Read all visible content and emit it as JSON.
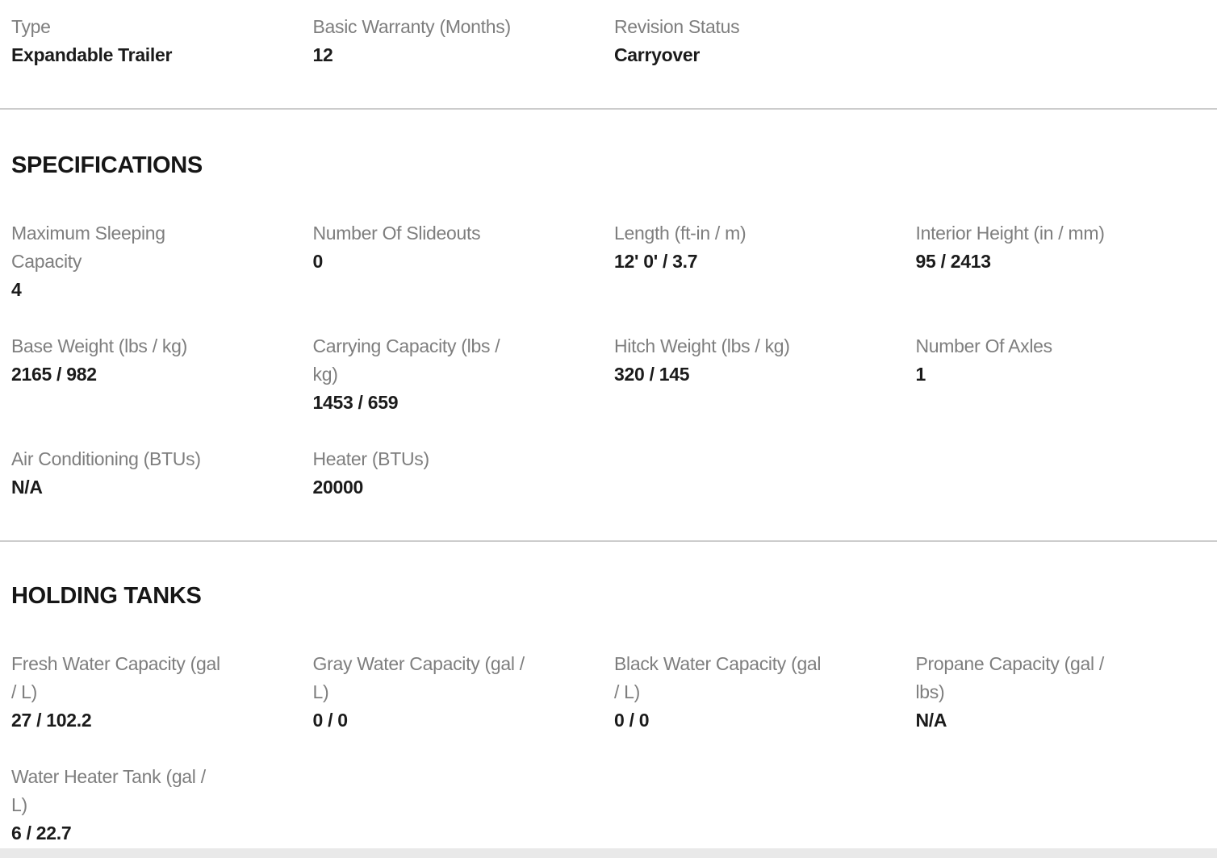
{
  "colors": {
    "label": "#7e7e7e",
    "value": "#1b1b1b",
    "divider": "#cccccc",
    "bottom_bar": "#e9e9e9",
    "background": "#ffffff"
  },
  "overview": {
    "fields": [
      {
        "label": "Type",
        "value": "Expandable Trailer"
      },
      {
        "label": "Basic Warranty (Months)",
        "value": "12"
      },
      {
        "label": "Revision Status",
        "value": "Carryover"
      }
    ]
  },
  "specifications": {
    "title": "SPECIFICATIONS",
    "fields": [
      {
        "label": "Maximum Sleeping\nCapacity",
        "value": "4"
      },
      {
        "label": "Number Of Slideouts",
        "value": "0"
      },
      {
        "label": "Length (ft-in / m)",
        "value": "12' 0' / 3.7"
      },
      {
        "label": "Interior Height (in / mm)",
        "value": "95 / 2413"
      },
      {
        "label": "Base Weight (lbs / kg)",
        "value": "2165 / 982"
      },
      {
        "label": "Carrying Capacity (lbs /\nkg)",
        "value": "1453 / 659"
      },
      {
        "label": "Hitch Weight (lbs / kg)",
        "value": "320 / 145"
      },
      {
        "label": "Number Of Axles",
        "value": "1"
      },
      {
        "label": "Air Conditioning (BTUs)",
        "value": "N/A"
      },
      {
        "label": "Heater (BTUs)",
        "value": "20000"
      }
    ]
  },
  "holding_tanks": {
    "title": "HOLDING TANKS",
    "fields": [
      {
        "label": "Fresh Water Capacity (gal\n/ L)",
        "value": "27 / 102.2"
      },
      {
        "label": "Gray Water Capacity (gal /\nL)",
        "value": "0 / 0"
      },
      {
        "label": "Black Water Capacity (gal\n/ L)",
        "value": "0 / 0"
      },
      {
        "label": "Propane Capacity (gal /\nlbs)",
        "value": "N/A"
      },
      {
        "label": "Water Heater Tank (gal /\nL)",
        "value": "6 / 22.7"
      }
    ]
  }
}
